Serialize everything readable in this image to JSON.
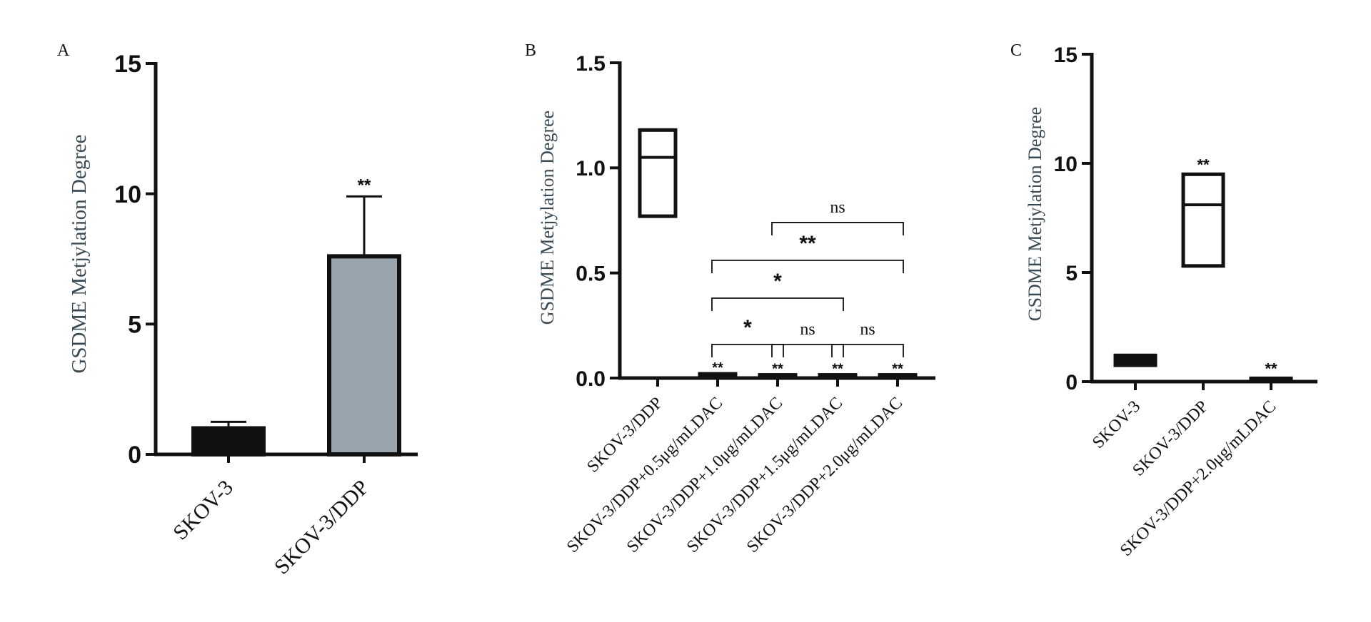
{
  "chart_data": [
    {
      "panel_label": "A",
      "type": "bar",
      "ylabel": "GSDME Metjylation Degree",
      "ylim": [
        0,
        15
      ],
      "yticks": [
        "0",
        "5",
        "10",
        "15"
      ],
      "categories": [
        "SKOV-3",
        "SKOV-3/DDP"
      ],
      "values": [
        1.0,
        7.6
      ],
      "errors": [
        0.25,
        2.3
      ],
      "fill_colors": [
        "#111111",
        "#9aa4ad"
      ],
      "annotations": [
        "",
        "**"
      ]
    },
    {
      "panel_label": "B",
      "type": "box",
      "ylabel": "GSDME Metjylation Degree",
      "ylim": [
        0,
        1.5
      ],
      "yticks": [
        "0.0",
        "0.5",
        "1.0",
        "1.5"
      ],
      "categories": [
        "SKOV-3/DDP",
        "SKOV-3/DDP+0.5μg/mLDAC",
        "SKOV-3/DDP+1.0μg/mLDAC",
        "SKOV-3/DDP+1.5μg/mLDAC",
        "SKOV-3/DDP+2.0μg/mLDAC"
      ],
      "boxes": [
        {
          "low": 0.77,
          "mid": 1.05,
          "high": 1.18
        },
        {
          "low": 0.01,
          "mid": 0.015,
          "high": 0.02
        },
        {
          "low": 0.005,
          "mid": 0.01,
          "high": 0.015
        },
        {
          "low": 0.005,
          "mid": 0.01,
          "high": 0.015
        },
        {
          "low": 0.005,
          "mid": 0.01,
          "high": 0.015
        }
      ],
      "annotations": [
        "",
        "**",
        "**",
        "**",
        "**"
      ],
      "comparisons": [
        {
          "from": 1,
          "to": 2,
          "label": "*",
          "y": 0.16
        },
        {
          "from": 2,
          "to": 3,
          "label": "ns",
          "y": 0.16
        },
        {
          "from": 3,
          "to": 4,
          "label": "ns",
          "y": 0.16
        },
        {
          "from": 1,
          "to": 3,
          "label": "*",
          "y": 0.38
        },
        {
          "from": 1,
          "to": 4,
          "label": "**",
          "y": 0.56
        },
        {
          "from": 2,
          "to": 4,
          "label": "ns",
          "y": 0.74
        }
      ]
    },
    {
      "panel_label": "C",
      "type": "box",
      "ylabel": "GSDME Metjylation Degree",
      "ylim": [
        0,
        15
      ],
      "yticks": [
        "0",
        "5",
        "10",
        "15"
      ],
      "categories": [
        "SKOV-3",
        "SKOV-3/DDP",
        "SKOV-3/DDP+2.0μg/mLDAC"
      ],
      "boxes": [
        {
          "low": 0.75,
          "mid": 1.0,
          "high": 1.2
        },
        {
          "low": 5.3,
          "mid": 8.1,
          "high": 9.5
        },
        {
          "low": 0.05,
          "mid": 0.1,
          "high": 0.15
        }
      ],
      "annotations": [
        "",
        "**",
        "**"
      ]
    }
  ]
}
